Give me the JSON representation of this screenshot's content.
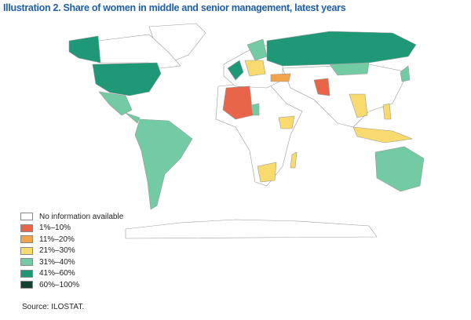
{
  "header": {
    "title": "Illustration 2. Share of women in middle and senior management, latest years"
  },
  "legend": [
    {
      "label": "No information available",
      "color": "#ffffff"
    },
    {
      "label": "1%–10%",
      "color": "#e8654a"
    },
    {
      "label": "11%–20%",
      "color": "#f3a34b"
    },
    {
      "label": "21%–30%",
      "color": "#f8da6e"
    },
    {
      "label": "31%–40%",
      "color": "#72cba2"
    },
    {
      "label": "41%–60%",
      "color": "#1f9878"
    },
    {
      "label": "60%–100%",
      "color": "#11412f"
    }
  ],
  "source": "Source: ILOSTAT."
}
